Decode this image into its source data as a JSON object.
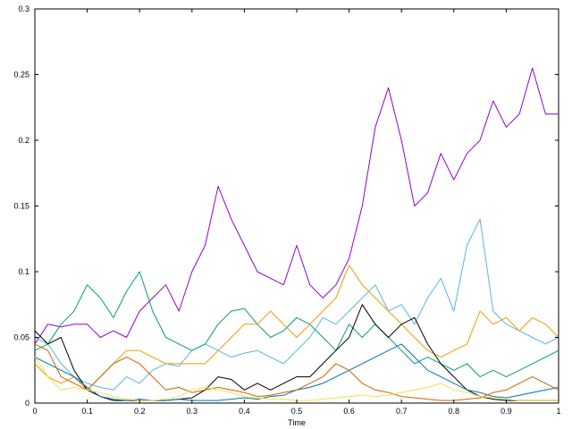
{
  "chart_data": {
    "type": "line",
    "title": "",
    "xlabel": "Time",
    "ylabel": "",
    "xlim": [
      0,
      1
    ],
    "ylim": [
      0,
      0.3
    ],
    "xticks": [
      "0",
      "0.1",
      "0.2",
      "0.3",
      "0.4",
      "0.5",
      "0.6",
      "0.7",
      "0.8",
      "0.9",
      "1"
    ],
    "yticks": [
      "0",
      "0.05",
      "0.1",
      "0.15",
      "0.2",
      "0.25",
      "0.3"
    ],
    "grid": false,
    "legend": "none",
    "x": [
      0,
      0.025,
      0.05,
      0.075,
      0.1,
      0.125,
      0.15,
      0.175,
      0.2,
      0.225,
      0.25,
      0.275,
      0.3,
      0.325,
      0.35,
      0.375,
      0.4,
      0.425,
      0.45,
      0.475,
      0.5,
      0.525,
      0.55,
      0.575,
      0.6,
      0.625,
      0.65,
      0.675,
      0.7,
      0.725,
      0.75,
      0.775,
      0.8,
      0.825,
      0.85,
      0.875,
      0.9,
      0.925,
      0.95,
      0.975,
      1
    ],
    "series": [
      {
        "color": "#9400d3",
        "values": [
          0.045,
          0.06,
          0.058,
          0.06,
          0.06,
          0.05,
          0.055,
          0.05,
          0.07,
          0.08,
          0.09,
          0.07,
          0.1,
          0.12,
          0.165,
          0.14,
          0.12,
          0.1,
          0.095,
          0.09,
          0.12,
          0.09,
          0.08,
          0.09,
          0.11,
          0.15,
          0.21,
          0.24,
          0.2,
          0.15,
          0.16,
          0.19,
          0.17,
          0.19,
          0.2,
          0.23,
          0.21,
          0.22,
          0.255,
          0.22,
          0.22
        ]
      },
      {
        "color": "#56b4e9",
        "values": [
          0.05,
          0.045,
          0.03,
          0.02,
          0.015,
          0.012,
          0.01,
          0.02,
          0.015,
          0.025,
          0.03,
          0.028,
          0.04,
          0.045,
          0.04,
          0.035,
          0.038,
          0.04,
          0.035,
          0.03,
          0.04,
          0.05,
          0.065,
          0.06,
          0.07,
          0.08,
          0.09,
          0.07,
          0.075,
          0.06,
          0.08,
          0.095,
          0.07,
          0.12,
          0.14,
          0.07,
          0.06,
          0.055,
          0.05,
          0.045,
          0.05
        ]
      },
      {
        "color": "#009e73",
        "values": [
          0.04,
          0.045,
          0.06,
          0.07,
          0.09,
          0.08,
          0.065,
          0.085,
          0.1,
          0.07,
          0.05,
          0.045,
          0.04,
          0.045,
          0.06,
          0.07,
          0.072,
          0.06,
          0.05,
          0.055,
          0.065,
          0.06,
          0.05,
          0.04,
          0.06,
          0.05,
          0.06,
          0.05,
          0.04,
          0.03,
          0.035,
          0.03,
          0.025,
          0.03,
          0.02,
          0.025,
          0.02,
          0.025,
          0.03,
          0.035,
          0.04
        ]
      },
      {
        "color": "#e69f00",
        "values": [
          0.03,
          0.02,
          0.015,
          0.02,
          0.01,
          0.02,
          0.03,
          0.04,
          0.04,
          0.035,
          0.03,
          0.03,
          0.03,
          0.03,
          0.04,
          0.05,
          0.06,
          0.06,
          0.07,
          0.06,
          0.05,
          0.06,
          0.07,
          0.08,
          0.105,
          0.09,
          0.08,
          0.07,
          0.06,
          0.05,
          0.04,
          0.035,
          0.04,
          0.045,
          0.07,
          0.06,
          0.065,
          0.055,
          0.065,
          0.06,
          0.05
        ]
      },
      {
        "color": "#000000",
        "values": [
          0.055,
          0.045,
          0.05,
          0.025,
          0.01,
          0.005,
          0.002,
          0.002,
          0.002,
          0.002,
          0.002,
          0.003,
          0.004,
          0.01,
          0.02,
          0.018,
          0.01,
          0.015,
          0.01,
          0.015,
          0.02,
          0.02,
          0.03,
          0.04,
          0.05,
          0.075,
          0.06,
          0.05,
          0.06,
          0.065,
          0.045,
          0.03,
          0.02,
          0.01,
          0.005,
          0.003,
          0.002,
          0.002,
          0.002,
          0.002,
          0.002
        ]
      },
      {
        "color": "#0072b2",
        "values": [
          0.035,
          0.03,
          0.025,
          0.02,
          0.012,
          0.005,
          0.003,
          0.002,
          0.003,
          0.002,
          0.002,
          0.003,
          0.002,
          0.002,
          0.002,
          0.003,
          0.004,
          0.003,
          0.005,
          0.006,
          0.01,
          0.012,
          0.015,
          0.02,
          0.025,
          0.03,
          0.035,
          0.04,
          0.045,
          0.035,
          0.025,
          0.02,
          0.015,
          0.01,
          0.008,
          0.005,
          0.004,
          0.006,
          0.008,
          0.01,
          0.012
        ]
      },
      {
        "color": "#d55e00",
        "values": [
          0.045,
          0.04,
          0.02,
          0.015,
          0.01,
          0.02,
          0.03,
          0.035,
          0.03,
          0.02,
          0.01,
          0.012,
          0.008,
          0.01,
          0.012,
          0.01,
          0.008,
          0.005,
          0.006,
          0.008,
          0.01,
          0.015,
          0.02,
          0.03,
          0.025,
          0.015,
          0.01,
          0.008,
          0.005,
          0.004,
          0.003,
          0.002,
          0.002,
          0.003,
          0.004,
          0.008,
          0.01,
          0.015,
          0.02,
          0.015,
          0.01
        ]
      },
      {
        "color": "#f0e442",
        "values": [
          0.035,
          0.02,
          0.01,
          0.012,
          0.01,
          0.008,
          0.005,
          0.003,
          0.002,
          0.002,
          0.003,
          0.005,
          0.01,
          0.012,
          0.01,
          0.008,
          0.005,
          0.004,
          0.003,
          0.003,
          0.002,
          0.002,
          0.003,
          0.004,
          0.005,
          0.006,
          0.005,
          0.006,
          0.008,
          0.01,
          0.012,
          0.015,
          0.01,
          0.008,
          0.005,
          0.004,
          0.003,
          0.002,
          0.002,
          0.002,
          0.002
        ]
      }
    ]
  }
}
